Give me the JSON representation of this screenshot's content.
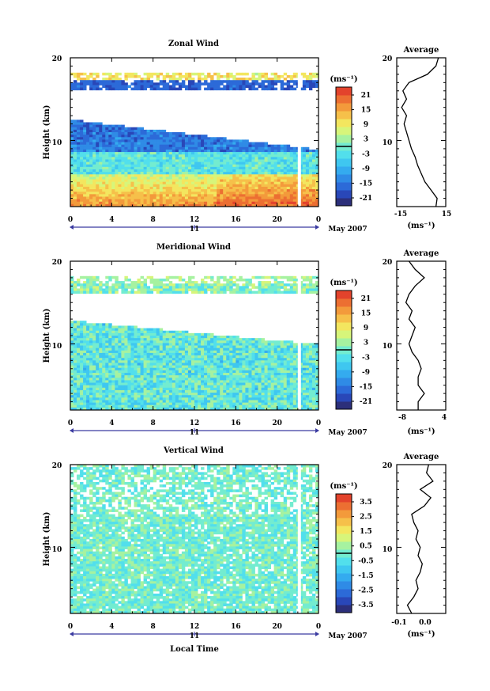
{
  "shared": {
    "time_ticks": [
      "0",
      "4",
      "8",
      "12",
      "16",
      "20",
      "0"
    ],
    "date_tick": "11",
    "date_label": "May 2007",
    "height_ticks": [
      "20",
      "10"
    ],
    "ylabel": "Height (km)",
    "unit_label": "(ms⁻¹)",
    "xlabel": "Local Time",
    "avg_title": "Average",
    "avg_unit": "(ms⁻¹)"
  },
  "colors": {
    "colormap": [
      "#2c2f7a",
      "#2947b8",
      "#2c6ad8",
      "#2f8be6",
      "#34abef",
      "#3fc7f0",
      "#52dfec",
      "#73ecd0",
      "#a6f2a0",
      "#d7f57a",
      "#f3e65f",
      "#f6c04a",
      "#f39a3b",
      "#ec6f32",
      "#e3432c"
    ]
  },
  "chart_data": [
    {
      "type": "heatmap",
      "title": "Zonal Wind",
      "xlabel": "",
      "ylabel": "Height (km)",
      "xlim": [
        0,
        24
      ],
      "ylim": [
        2,
        20
      ],
      "colorbar_ticks": [
        "21",
        "15",
        "9",
        "3",
        "-3",
        "-9",
        "-15",
        "-21"
      ],
      "colorbar_range": [
        -24,
        24
      ],
      "average": {
        "title": "Average",
        "xlabel": "(ms⁻¹)",
        "xticks": [
          "-15",
          "15"
        ],
        "xlim": [
          -20,
          20
        ],
        "yticks": [
          "20",
          "10"
        ],
        "profile_height": [
          2,
          3,
          4,
          5,
          6,
          7,
          8,
          9,
          10,
          11,
          12,
          13,
          14,
          15,
          16,
          17,
          18,
          19,
          20
        ],
        "profile_value": [
          12,
          13,
          8,
          3,
          0,
          -3,
          -5,
          -8,
          -10,
          -12,
          -14,
          -12,
          -16,
          -12,
          -15,
          -10,
          5,
          12,
          14
        ]
      }
    },
    {
      "type": "heatmap",
      "title": "Meridional Wind",
      "xlabel": "",
      "ylabel": "Height (km)",
      "xlim": [
        0,
        24
      ],
      "ylim": [
        2,
        20
      ],
      "colorbar_ticks": [
        "21",
        "15",
        "9",
        "3",
        "-3",
        "-9",
        "-15",
        "-21"
      ],
      "colorbar_range": [
        -24,
        24
      ],
      "average": {
        "title": "Average",
        "xlabel": "(ms⁻¹)",
        "xticks": [
          "-8",
          "4"
        ],
        "xlim": [
          -10,
          6
        ],
        "yticks": [
          "20",
          "10"
        ],
        "profile_height": [
          2,
          3,
          4,
          5,
          6,
          7,
          8,
          9,
          10,
          11,
          12,
          13,
          14,
          15,
          16,
          17,
          18,
          19,
          20
        ],
        "profile_value": [
          -3,
          -3,
          -1,
          -3,
          -3,
          -2,
          -3,
          -5,
          -6,
          -5,
          -4,
          -6,
          -5,
          -7,
          -6,
          -4,
          -1,
          -4,
          -6
        ]
      }
    },
    {
      "type": "heatmap",
      "title": "Vertical Wind",
      "xlabel": "Local Time",
      "ylabel": "Height (km)",
      "xlim": [
        0,
        24
      ],
      "ylim": [
        2,
        20
      ],
      "colorbar_ticks": [
        "3.5",
        "2.5",
        "1.5",
        "0.5",
        "-0.5",
        "-1.5",
        "-2.5",
        "-3.5"
      ],
      "colorbar_range": [
        -4,
        4
      ],
      "average": {
        "title": "Average",
        "xlabel": "(ms⁻¹)",
        "xticks": [
          "-0.1",
          "0.0"
        ],
        "xlim": [
          -0.15,
          0.08
        ],
        "yticks": [
          "20",
          "10"
        ],
        "profile_height": [
          2,
          3,
          4,
          5,
          6,
          7,
          8,
          9,
          10,
          11,
          12,
          13,
          14,
          15,
          16,
          17,
          18,
          19,
          20
        ],
        "profile_value": [
          -0.08,
          -0.1,
          -0.07,
          -0.05,
          -0.06,
          -0.04,
          -0.03,
          -0.05,
          -0.04,
          -0.06,
          -0.05,
          -0.07,
          -0.08,
          -0.02,
          0.01,
          -0.04,
          0.02,
          -0.01,
          0.0
        ]
      }
    }
  ]
}
